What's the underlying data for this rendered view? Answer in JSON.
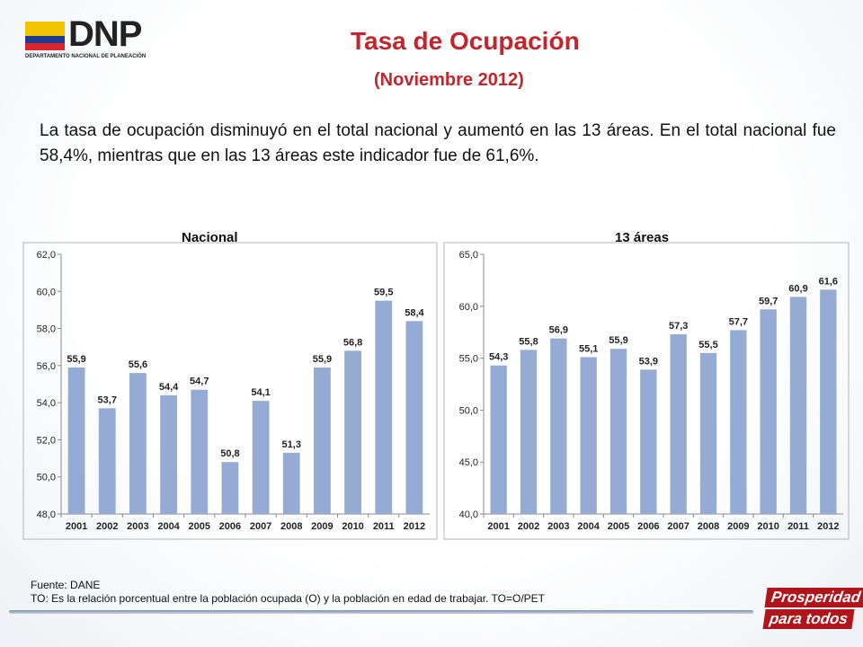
{
  "header": {
    "logo_text": "DNP",
    "logo_subtitle": "DEPARTAMENTO NACIONAL DE PLANEACIÓN",
    "title": "Tasa de Ocupación",
    "subtitle": "(Noviembre 2012)"
  },
  "summary": "La tasa de ocupación disminuyó en el total nacional y aumentó en las 13 áreas. En el total nacional fue 58,4%, mientras que en las 13 áreas este indicador fue de 61,6%.",
  "footer": {
    "source": "Fuente: DANE",
    "note": "TO: Es la relación porcentual entre la población ocupada (O) y la población  en edad de trabajar. TO=O/PET"
  },
  "badge": {
    "line1": "Prosperidad",
    "line2": "para todos"
  },
  "colors": {
    "bar": "#95abd3",
    "title": "#c0262d"
  },
  "chart_data": [
    {
      "type": "bar",
      "title": "Nacional",
      "categories": [
        "2001",
        "2002",
        "2003",
        "2004",
        "2005",
        "2006",
        "2007",
        "2008",
        "2009",
        "2010",
        "2011",
        "2012"
      ],
      "values": [
        55.9,
        53.7,
        55.6,
        54.4,
        54.7,
        50.8,
        54.1,
        51.3,
        55.9,
        56.8,
        59.5,
        58.4
      ],
      "labels": [
        "55,9",
        "53,7",
        "55,6",
        "54,4",
        "54,7",
        "50,8",
        "54,1",
        "51,3",
        "55,9",
        "56,8",
        "59,5",
        "58,4"
      ],
      "ylim": [
        48,
        62
      ],
      "yticks": [
        "48,0",
        "50,0",
        "52,0",
        "54,0",
        "56,0",
        "58,0",
        "60,0",
        "62,0"
      ],
      "ytick_values": [
        48,
        50,
        52,
        54,
        56,
        58,
        60,
        62
      ]
    },
    {
      "type": "bar",
      "title": "13 áreas",
      "categories": [
        "2001",
        "2002",
        "2003",
        "2004",
        "2005",
        "2006",
        "2007",
        "2008",
        "2009",
        "2010",
        "2011",
        "2012"
      ],
      "values": [
        54.3,
        55.8,
        56.9,
        55.1,
        55.9,
        53.9,
        57.3,
        55.5,
        57.7,
        59.7,
        60.9,
        61.6
      ],
      "labels": [
        "54,3",
        "55,8",
        "56,9",
        "55,1",
        "55,9",
        "53,9",
        "57,3",
        "55,5",
        "57,7",
        "59,7",
        "60,9",
        "61,6"
      ],
      "ylim": [
        40,
        65
      ],
      "yticks": [
        "40,0",
        "45,0",
        "50,0",
        "55,0",
        "60,0",
        "65,0"
      ],
      "ytick_values": [
        40,
        45,
        50,
        55,
        60,
        65
      ]
    }
  ]
}
